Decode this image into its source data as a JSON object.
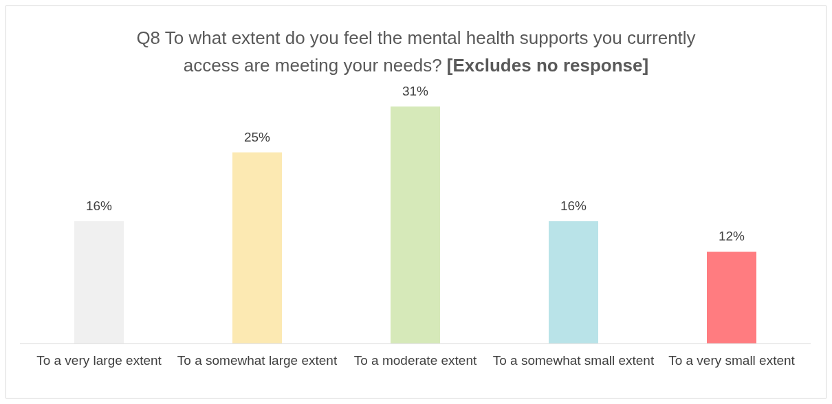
{
  "chart_data": {
    "type": "bar",
    "title": "Q8 To what extent do you feel the mental health supports you currently access are meeting your needs?",
    "subtitle": "[Excludes no response]",
    "categories": [
      "To a very large extent",
      "To a somewhat large extent",
      "To a moderate extent",
      "To a somewhat small extent",
      "To a very small extent"
    ],
    "values": [
      16,
      25,
      31,
      16,
      12
    ],
    "colors": [
      "#f0f0f0",
      "#fce9b2",
      "#d6e9b9",
      "#b9e3e8",
      "#ff7c80"
    ],
    "value_labels": [
      "16%",
      "25%",
      "31%",
      "16%",
      "12%"
    ],
    "grid": false,
    "legend": false
  }
}
